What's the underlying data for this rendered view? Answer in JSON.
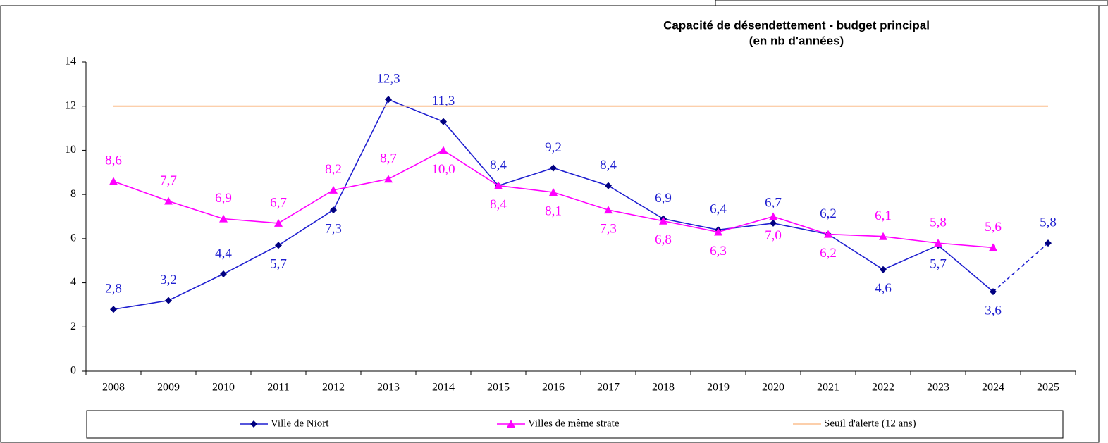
{
  "chart_data": {
    "type": "line",
    "title": "Capacité de désendettement - budget principal",
    "subtitle": "(en nb d'années)",
    "categories": [
      "2008",
      "2009",
      "2010",
      "2011",
      "2012",
      "2013",
      "2014",
      "2015",
      "2016",
      "2017",
      "2018",
      "2019",
      "2020",
      "2021",
      "2022",
      "2023",
      "2024",
      "2025"
    ],
    "series": [
      {
        "name": "Ville de Niort",
        "color": "#1f1fd0",
        "marker_color": "#000080",
        "marker": "diamond",
        "last_segment_dashed": true,
        "values": [
          2.8,
          3.2,
          4.4,
          5.7,
          7.3,
          12.3,
          11.3,
          8.4,
          9.2,
          8.4,
          6.9,
          6.4,
          6.7,
          6.2,
          4.6,
          5.7,
          3.6,
          5.8
        ],
        "value_labels": [
          "2,8",
          "3,2",
          "4,4",
          "5,7",
          "7,3",
          "12,3",
          "11,3",
          "8,4",
          "9,2",
          "8,4",
          "6,9",
          "6,4",
          "6,7",
          "6,2",
          "4,6",
          "5,7",
          "3,6",
          "5,8"
        ]
      },
      {
        "name": "Villes de même strate",
        "color": "#ff00ff",
        "marker_color": "#ff00ff",
        "marker": "triangle",
        "values": [
          8.6,
          7.7,
          6.9,
          6.7,
          8.2,
          8.7,
          10.0,
          8.4,
          8.1,
          7.3,
          6.8,
          6.3,
          7.0,
          6.2,
          6.1,
          5.8,
          5.6,
          null
        ],
        "value_labels": [
          "8,6",
          "7,7",
          "6,9",
          "6,7",
          "8,2",
          "8,7",
          "10,0",
          "8,4",
          "8,1",
          "7,3",
          "6,8",
          "6,3",
          "7,0",
          "6,2",
          "6,1",
          "5,8",
          "5,6",
          null
        ]
      },
      {
        "name": "Seuil d'alerte (12 ans)",
        "color": "#fbbf8f",
        "values": [
          12,
          12,
          12,
          12,
          12,
          12,
          12,
          12,
          12,
          12,
          12,
          12,
          12,
          12,
          12,
          12,
          12,
          12
        ]
      }
    ],
    "ylim": [
      0,
      14
    ],
    "yticks": [
      0,
      2,
      4,
      6,
      8,
      10,
      12,
      14
    ],
    "legend": "bottom",
    "grid": false
  }
}
